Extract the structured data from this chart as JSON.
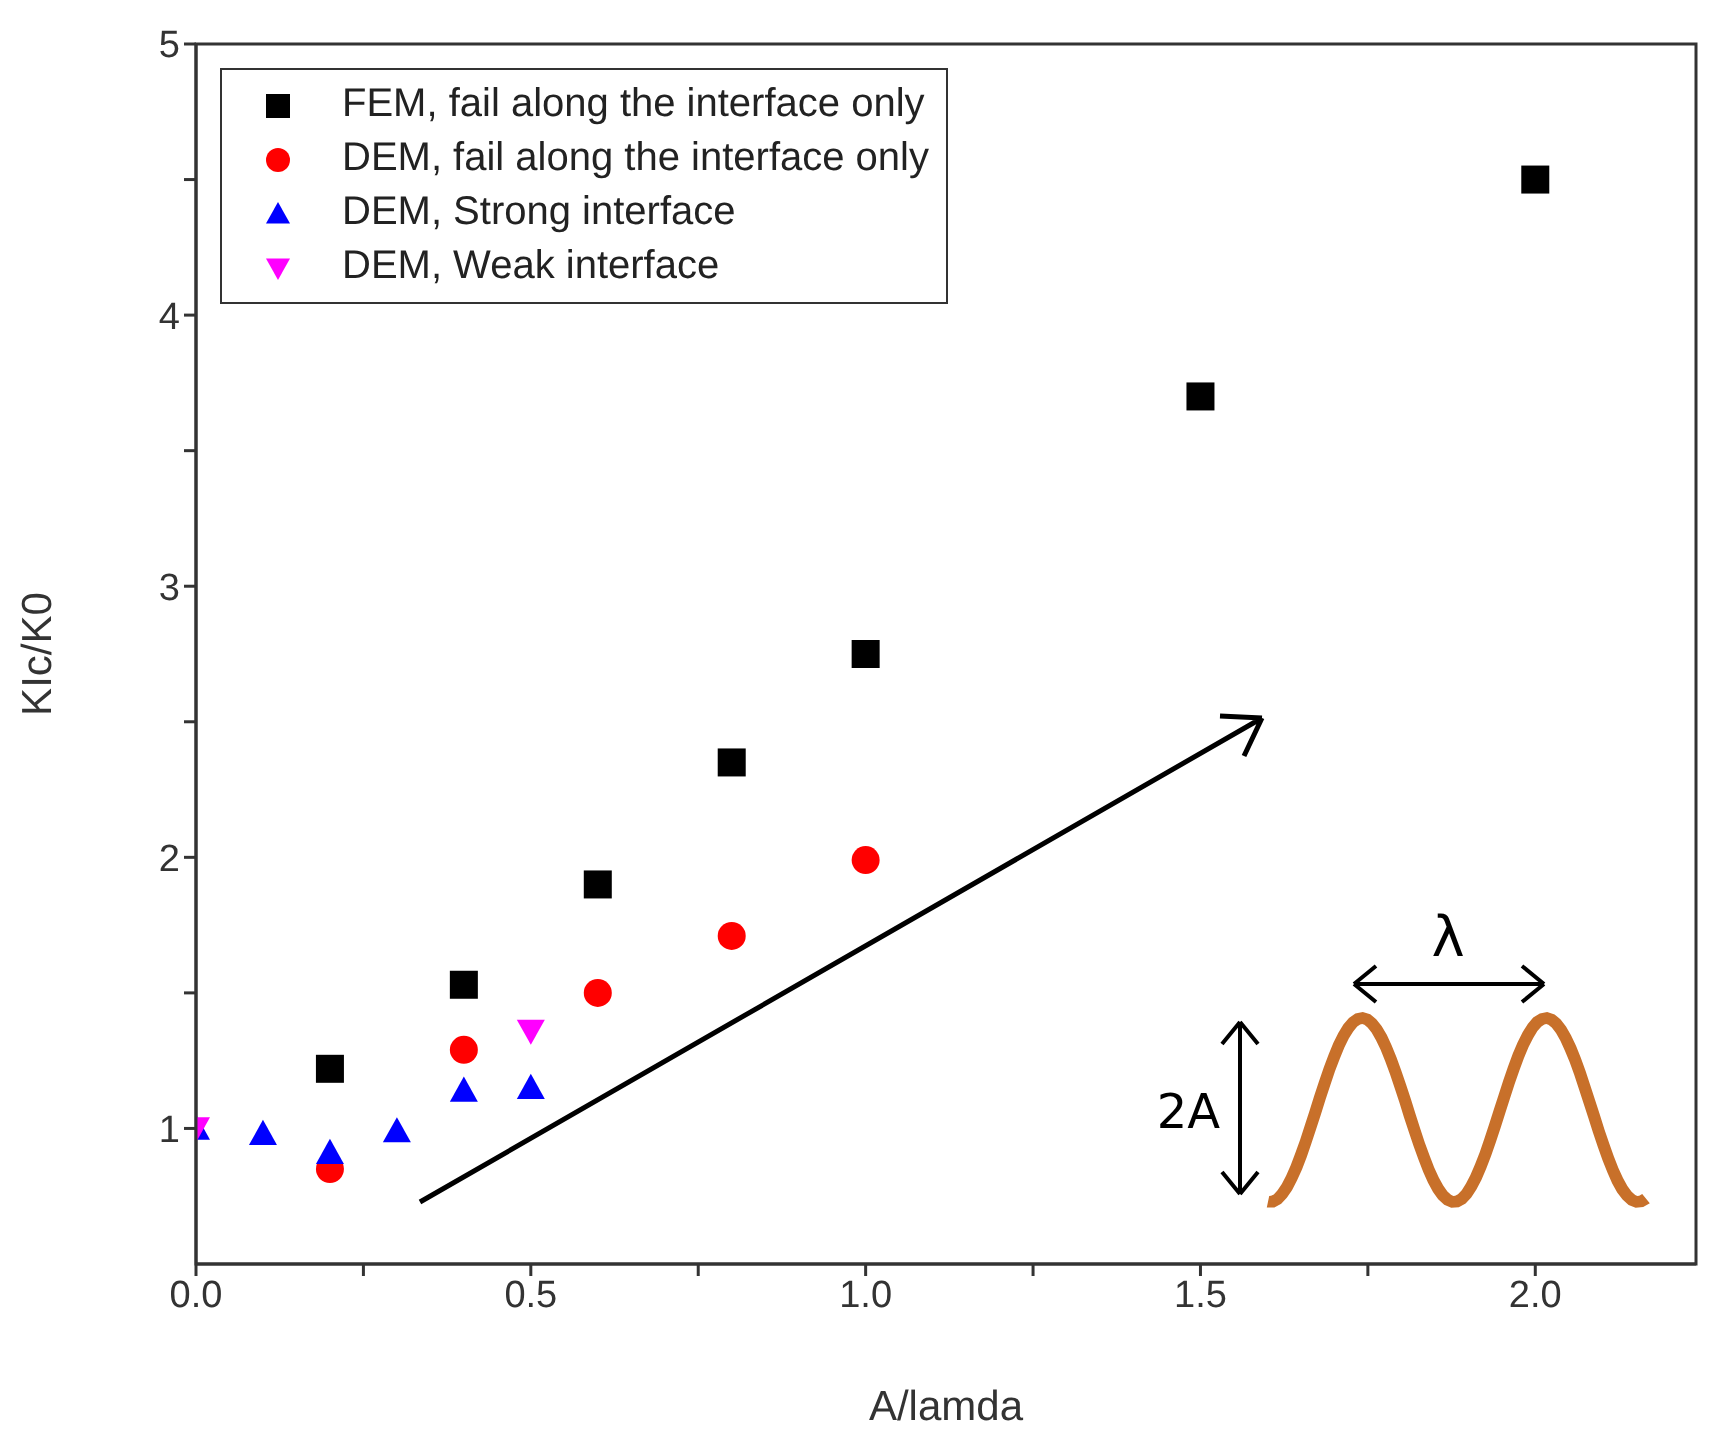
{
  "chart_data": {
    "type": "scatter",
    "xlabel": "A/lamda",
    "ylabel": "KIc/K0",
    "xlim": [
      0,
      2.24
    ],
    "xticks": [
      {
        "value": 0,
        "label": "0.0"
      },
      {
        "value": 0.25,
        "label": null
      },
      {
        "value": 0.5,
        "label": "0.5"
      },
      {
        "value": 0.75,
        "label": null
      },
      {
        "value": 1,
        "label": "1.0"
      },
      {
        "value": 1.25,
        "label": null
      },
      {
        "value": 1.5,
        "label": "1.5"
      },
      {
        "value": 1.75,
        "label": null
      },
      {
        "value": 2,
        "label": "2.0"
      }
    ],
    "ylim": [
      0.5,
      5
    ],
    "yticks": [
      {
        "value": 1,
        "label": "1"
      },
      {
        "value": 1.5,
        "label": null
      },
      {
        "value": 2,
        "label": "2"
      },
      {
        "value": 2.5,
        "label": null
      },
      {
        "value": 3,
        "label": "3"
      },
      {
        "value": 3.5,
        "label": null
      },
      {
        "value": 4,
        "label": "4"
      },
      {
        "value": 4.5,
        "label": null
      },
      {
        "value": 5,
        "label": "5"
      }
    ],
    "grid": false,
    "legend": "top left",
    "annotations": [
      "λ",
      "2A"
    ],
    "series": [
      {
        "name": "FEM, fail along the interface only",
        "color": "#000000",
        "marker": "square",
        "x": [
          0.2,
          0.4,
          0.6,
          0.8,
          1.0,
          1.5,
          2.0
        ],
        "values": [
          1.22,
          1.53,
          1.9,
          2.35,
          2.75,
          3.7,
          4.5
        ]
      },
      {
        "name": "DEM, fail along the interface only",
        "color": "#ff0000",
        "marker": "circle",
        "x": [
          0.2,
          0.4,
          0.6,
          0.8,
          1.0
        ],
        "values": [
          0.85,
          1.29,
          1.5,
          1.71,
          1.99
        ]
      },
      {
        "name": "DEM, Strong interface",
        "color": "#0000ff",
        "marker": "triangle",
        "x": [
          0,
          0.1,
          0.2,
          0.3,
          0.4,
          0.5
        ],
        "values": [
          1.0,
          0.98,
          0.91,
          0.99,
          1.14,
          1.15
        ]
      },
      {
        "name": "DEM, Weak interface",
        "color": "#ff00ff",
        "marker": "triangle-down",
        "x": [
          0,
          0.5
        ],
        "values": [
          1.0,
          1.36
        ]
      }
    ]
  }
}
